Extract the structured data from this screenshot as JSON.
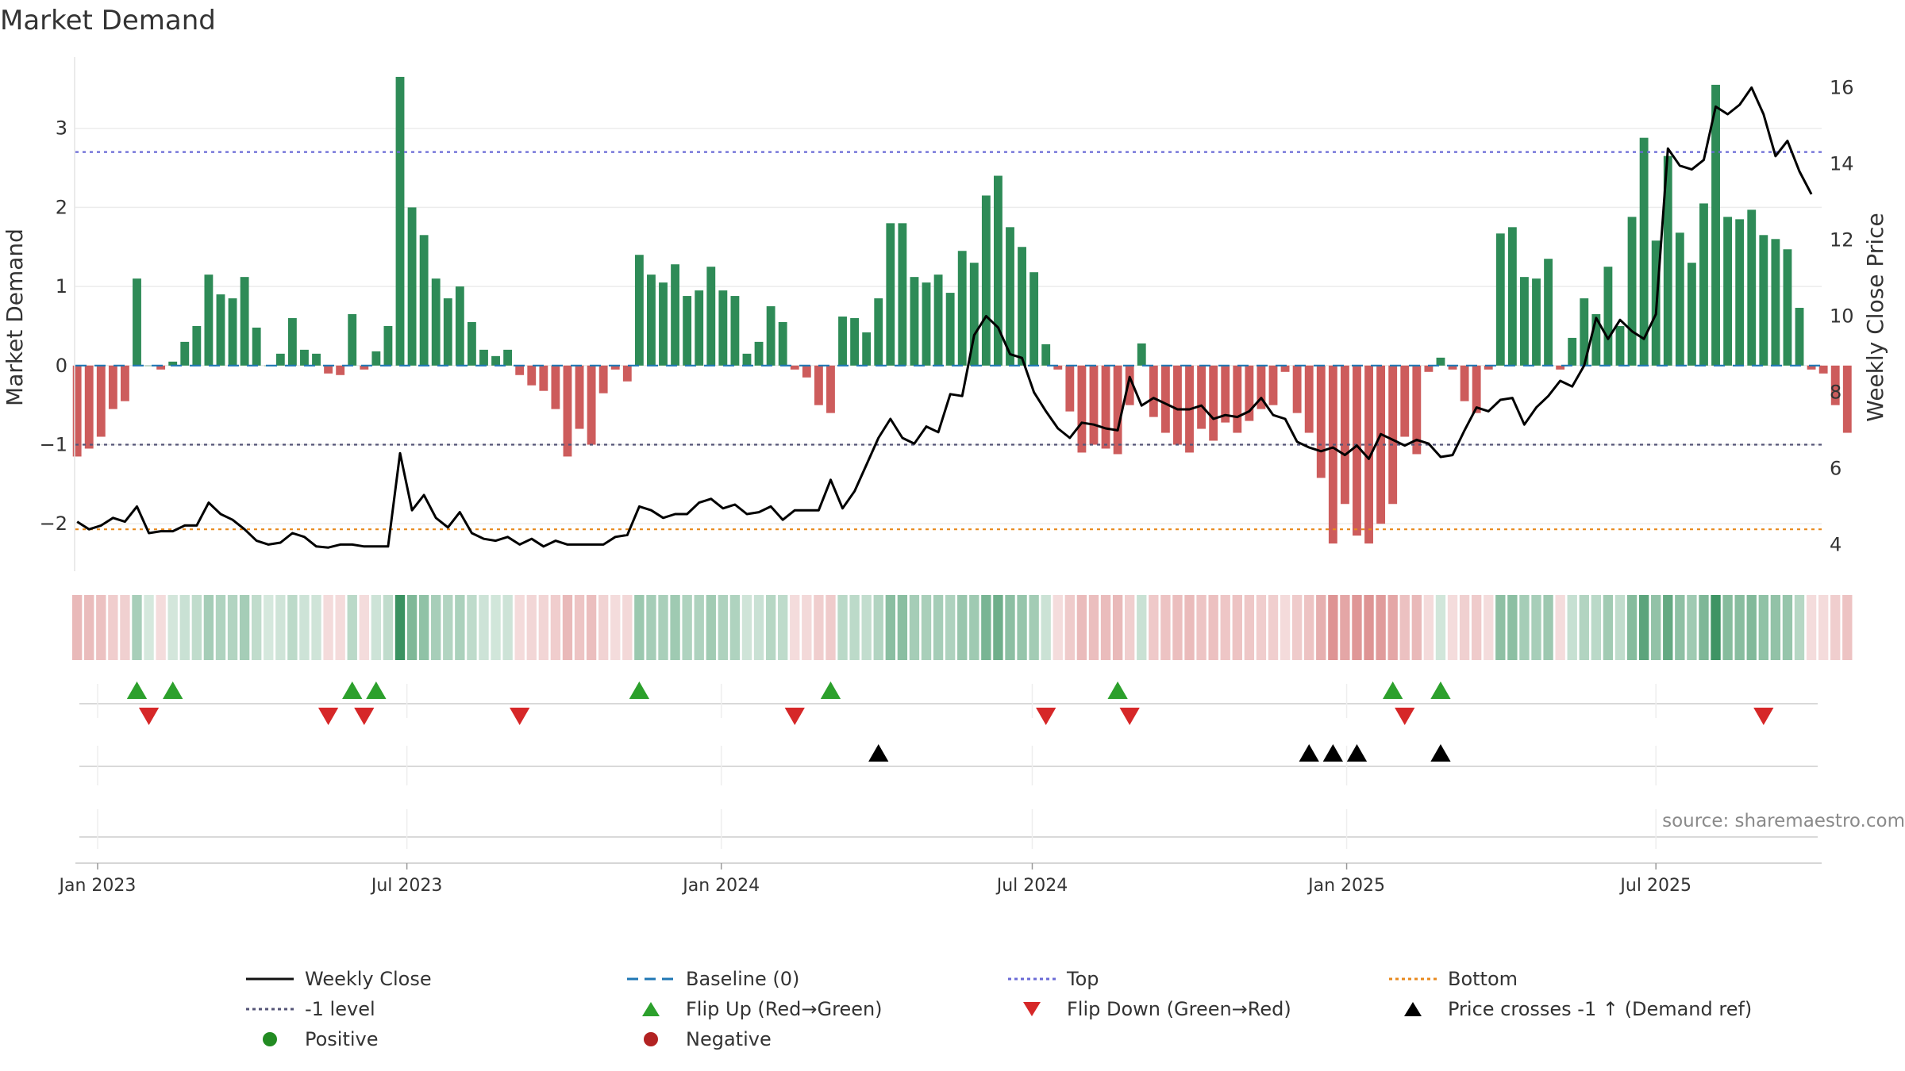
{
  "chart_data": {
    "type": "bar",
    "title": "Market Demand",
    "source": "source: sharemaestro.com",
    "ylabel": "Market Demand",
    "y2label": "Weekly Close Price",
    "ylim": [
      -2.6,
      3.9
    ],
    "y2lim": [
      3.3,
      16.8
    ],
    "yticks": [
      -2,
      -1,
      0,
      1,
      2,
      3
    ],
    "y2ticks": [
      4,
      6,
      8,
      10,
      12,
      14,
      16
    ],
    "x_start": "2022-12-19",
    "x_end": "2025-10-06",
    "date_ticks": [
      {
        "date": "2023-01-01",
        "label": "Jan 2023"
      },
      {
        "date": "2023-07-01",
        "label": "Jul 2023"
      },
      {
        "date": "2024-01-01",
        "label": "Jan 2024"
      },
      {
        "date": "2024-07-01",
        "label": "Jul 2024"
      },
      {
        "date": "2025-01-01",
        "label": "Jan 2025"
      },
      {
        "date": "2025-07-01",
        "label": "Jul 2025"
      }
    ],
    "weeks_start": "2022-12-20",
    "series": [
      {
        "name": "Market Demand",
        "values": [
          -1.15,
          -1.05,
          -0.9,
          -0.55,
          -0.45,
          1.1,
          0,
          -0.05,
          0.05,
          0.3,
          0.5,
          1.15,
          0.9,
          0.85,
          1.12,
          0.48,
          0,
          0.15,
          0.6,
          0.2,
          0.15,
          -0.1,
          -0.12,
          0.65,
          -0.05,
          0.18,
          0.5,
          3.65,
          2.0,
          1.65,
          1.1,
          0.85,
          1.0,
          0.55,
          0.2,
          0.12,
          0.2,
          -0.12,
          -0.25,
          -0.32,
          -0.55,
          -1.15,
          -0.8,
          -1.0,
          -0.35,
          -0.05,
          -0.2,
          1.4,
          1.15,
          1.05,
          1.28,
          0.88,
          0.95,
          1.25,
          0.95,
          0.88,
          0.15,
          0.3,
          0.75,
          0.55,
          -0.05,
          -0.15,
          -0.5,
          -0.6,
          0.62,
          0.6,
          0.42,
          0.85,
          1.8,
          1.8,
          1.12,
          1.05,
          1.15,
          0.92,
          1.45,
          1.3,
          2.15,
          2.4,
          1.75,
          1.5,
          1.18,
          0.27,
          -0.05,
          -0.58,
          -1.1,
          -1.0,
          -1.05,
          -1.12,
          -0.5,
          0.28,
          -0.65,
          -0.85,
          -1.0,
          -1.1,
          -0.8,
          -0.95,
          -0.72,
          -0.85,
          -0.7,
          -0.55,
          -0.5,
          -0.08,
          -0.6,
          -0.85,
          -1.42,
          -2.25,
          -1.75,
          -2.15,
          -2.25,
          -2.0,
          -1.75,
          -0.9,
          -1.12,
          -0.08,
          0.1,
          -0.05,
          -0.45,
          -0.6,
          -0.05,
          1.67,
          1.75,
          1.12,
          1.1,
          1.35,
          -0.05,
          0.35,
          0.85,
          0.65,
          1.25,
          0.5,
          1.88,
          2.88,
          1.58,
          2.65,
          1.68,
          1.3,
          2.05,
          3.55,
          1.88,
          1.85,
          1.97,
          1.65,
          1.6,
          1.47,
          0.73,
          -0.05,
          -0.1,
          -0.5,
          -0.85
        ]
      },
      {
        "name": "Weekly Close",
        "axis": "right",
        "values": [
          4.6,
          4.4,
          4.5,
          4.7,
          4.6,
          5.0,
          4.3,
          4.35,
          4.35,
          4.5,
          4.5,
          5.1,
          4.8,
          4.65,
          4.4,
          4.1,
          4.0,
          4.05,
          4.3,
          4.2,
          3.95,
          3.92,
          4.0,
          4.0,
          3.95,
          3.95,
          3.95,
          6.4,
          4.9,
          5.3,
          4.7,
          4.45,
          4.85,
          4.3,
          4.15,
          4.1,
          4.2,
          4.0,
          4.15,
          3.95,
          4.1,
          4.0,
          4.0,
          4.0,
          4.0,
          4.2,
          4.25,
          5.0,
          4.9,
          4.7,
          4.8,
          4.8,
          5.1,
          5.2,
          4.95,
          5.05,
          4.8,
          4.85,
          5.0,
          4.65,
          4.9,
          4.9,
          4.9,
          5.7,
          4.95,
          5.4,
          6.1,
          6.8,
          7.3,
          6.8,
          6.65,
          7.1,
          6.95,
          7.95,
          7.9,
          9.5,
          10.0,
          9.7,
          9.0,
          8.9,
          8.0,
          7.5,
          7.05,
          6.8,
          7.2,
          7.15,
          7.05,
          7.0,
          8.4,
          7.65,
          7.85,
          7.7,
          7.55,
          7.55,
          7.65,
          7.3,
          7.4,
          7.35,
          7.5,
          7.85,
          7.4,
          7.3,
          6.7,
          6.55,
          6.45,
          6.55,
          6.35,
          6.6,
          6.25,
          6.9,
          6.75,
          6.6,
          6.75,
          6.65,
          6.3,
          6.35,
          7.0,
          7.6,
          7.5,
          7.8,
          7.85,
          7.15,
          7.6,
          7.9,
          8.3,
          8.15,
          8.7,
          9.95,
          9.4,
          9.9,
          9.6,
          9.4,
          10.05,
          14.4,
          13.95,
          13.85,
          14.1,
          15.5,
          15.3,
          15.55,
          16.0,
          15.3,
          14.2,
          14.6,
          13.8,
          13.2
        ]
      }
    ],
    "reference_lines": [
      {
        "name": "Baseline (0)",
        "value": 0,
        "color": "#1f77b4"
      },
      {
        "name": "Top",
        "value": 2.7,
        "color": "#6a6ad6"
      },
      {
        "name": "-1 level",
        "value": -1,
        "color": "#555577"
      },
      {
        "name": "Bottom",
        "value": -2.07,
        "color": "#e8891c"
      }
    ],
    "flip_up_weeks": [
      5,
      8,
      23,
      25,
      47,
      63,
      87,
      110,
      114
    ],
    "flip_down_weeks": [
      6,
      21,
      24,
      37,
      60,
      81,
      88,
      111,
      141
    ],
    "price_cross_weeks": [
      67,
      103,
      105,
      107,
      114
    ],
    "colors": {
      "positive_bar": "#2e8b57",
      "negative_bar": "#cd5c5c",
      "price_line": "#000000",
      "flip_up": "#2ca02c",
      "flip_down": "#d62728",
      "positive_dot": "#228b22",
      "negative_dot": "#b22222"
    }
  },
  "legend": [
    {
      "label": "Weekly Close",
      "icon": "solid-line",
      "color": "#111111"
    },
    {
      "label": "Baseline (0)",
      "icon": "dash-line",
      "color": "#1f77b4"
    },
    {
      "label": "Top",
      "icon": "dot-line",
      "color": "#6a6ad6"
    },
    {
      "label": "Bottom",
      "icon": "dot-line",
      "color": "#e8891c"
    },
    {
      "label": "-1 level",
      "icon": "dot-line",
      "color": "#555577"
    },
    {
      "label": "Flip Up (Red→Green)",
      "icon": "triangle-up",
      "color": "#2ca02c"
    },
    {
      "label": "Flip Down (Green→Red)",
      "icon": "triangle-down",
      "color": "#d62728"
    },
    {
      "label": "Price crosses -1 ↑ (Demand ref)",
      "icon": "triangle-up",
      "color": "#000000"
    },
    {
      "label": "Positive",
      "icon": "circle",
      "color": "#228b22"
    },
    {
      "label": "Negative",
      "icon": "circle",
      "color": "#b22222"
    }
  ]
}
